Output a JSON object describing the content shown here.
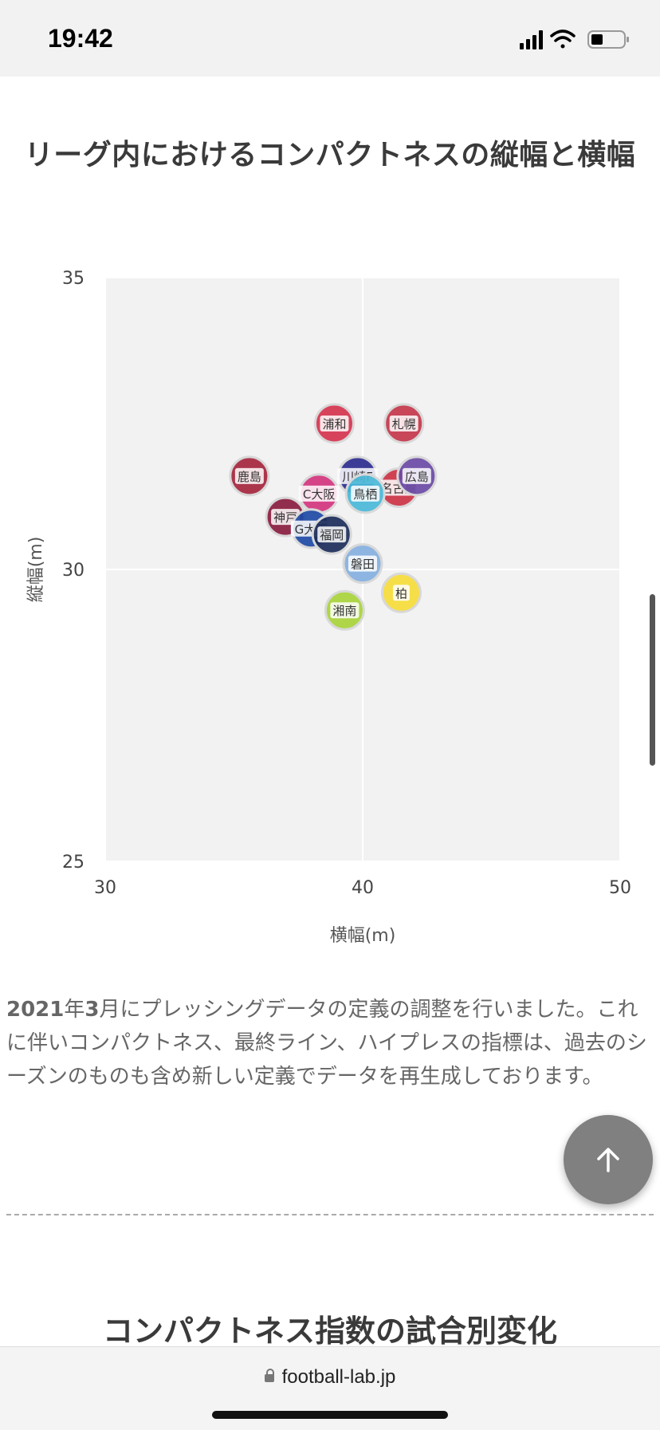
{
  "status": {
    "time": "19:42"
  },
  "section_title": "リーグ内におけるコンパクトネスの縦幅と横幅",
  "chart_data": {
    "type": "scatter",
    "title": "",
    "xlabel": "横幅(m)",
    "ylabel": "縦幅(m)",
    "xlim": [
      30,
      50
    ],
    "ylim": [
      25,
      35
    ],
    "x_ticks": [
      "30",
      "40",
      "50"
    ],
    "y_ticks": [
      "25",
      "30",
      "35"
    ],
    "grid": true,
    "points": [
      {
        "label": "浦和",
        "x": 38.9,
        "y": 32.5,
        "color": "#d6344f"
      },
      {
        "label": "札幌",
        "x": 41.6,
        "y": 32.5,
        "color": "#c4374b"
      },
      {
        "label": "鹿島",
        "x": 35.6,
        "y": 31.6,
        "color": "#a5263e"
      },
      {
        "label": "川崎F",
        "x": 39.8,
        "y": 31.6,
        "color": "#2d2d8f"
      },
      {
        "label": "名古屋",
        "x": 41.4,
        "y": 31.4,
        "color": "#cc3344"
      },
      {
        "label": "広島",
        "x": 42.1,
        "y": 31.6,
        "color": "#6a4aa5"
      },
      {
        "label": "C大阪",
        "x": 38.3,
        "y": 31.3,
        "color": "#d4357f"
      },
      {
        "label": "鳥栖",
        "x": 40.1,
        "y": 31.3,
        "color": "#4ab8d8"
      },
      {
        "label": "神戸",
        "x": 37.0,
        "y": 30.9,
        "color": "#8a1d3f"
      },
      {
        "label": "G大阪",
        "x": 38.0,
        "y": 30.7,
        "color": "#1e4aa5"
      },
      {
        "label": "福岡",
        "x": 38.8,
        "y": 30.6,
        "color": "#1b2d5a"
      },
      {
        "label": "磐田",
        "x": 40.0,
        "y": 30.1,
        "color": "#86b0e0"
      },
      {
        "label": "柏",
        "x": 41.5,
        "y": 29.6,
        "color": "#f5dc3a"
      },
      {
        "label": "湘南",
        "x": 39.3,
        "y": 29.3,
        "color": "#a8d43a"
      }
    ]
  },
  "note": {
    "lead": "2021",
    "year_unit": "年",
    "month": "3",
    "rest": "月にプレッシングデータの定義の調整を行いました。これに伴いコンパクトネス、最終ライン、ハイプレスの指標は、過去のシーズンのものも含め新しい定義でデータを再生成しております。"
  },
  "section_title_2": "コンパクトネス指数の試合別変化",
  "browser": {
    "url": "football-lab.jp"
  }
}
